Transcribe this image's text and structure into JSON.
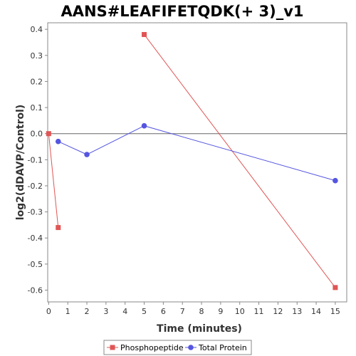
{
  "chart_data": {
    "type": "line",
    "title": "AANS#LEAFIFETQDK(+ 3)_v1",
    "xlabel": "Time (minutes)",
    "ylabel": "log2(dDAVP/Control)",
    "xlim": [
      -0.05,
      15.6
    ],
    "ylim": [
      -0.645,
      0.425
    ],
    "x_ticks": [
      0,
      1,
      2,
      3,
      4,
      5,
      6,
      7,
      8,
      9,
      10,
      11,
      12,
      13,
      14,
      15
    ],
    "y_ticks": [
      0.4,
      0.3,
      0.2,
      0.1,
      0.0,
      -0.1,
      -0.2,
      -0.3,
      -0.4,
      -0.5,
      -0.6
    ],
    "y_tick_labels": [
      "0.4",
      "0.3",
      "0.2",
      "0.1",
      "0.0",
      "-0.1",
      "-0.2",
      "-0.3",
      "-0.4",
      "-0.5",
      "-0.6"
    ],
    "grid": false,
    "zero_line": true,
    "legend_position": "bottom",
    "series": [
      {
        "name": "Phosphopeptide",
        "color": "#e05555",
        "marker": "square",
        "segments": [
          [
            {
              "x": 0,
              "y": 0.0
            },
            {
              "x": 0.5,
              "y": -0.36
            }
          ],
          [
            {
              "x": 5,
              "y": 0.38
            },
            {
              "x": 15,
              "y": -0.59
            }
          ]
        ]
      },
      {
        "name": "Total Protein",
        "color": "#5555e0",
        "marker": "circle",
        "segments": [
          [
            {
              "x": 0.5,
              "y": -0.03
            },
            {
              "x": 2,
              "y": -0.08
            },
            {
              "x": 5,
              "y": 0.03
            },
            {
              "x": 15,
              "y": -0.18
            }
          ]
        ]
      }
    ]
  }
}
